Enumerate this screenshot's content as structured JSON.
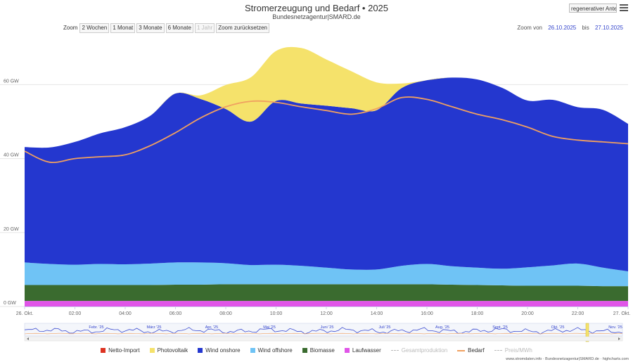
{
  "header": {
    "title": "Stromerzeugung und Bedarf  •  2025",
    "subtitle": "Bundesnetzagentur|SMARD.de",
    "menu_dropdown": "regenerativer Anteil...",
    "menu_icon": "hamburger-icon"
  },
  "zoom": {
    "label": "Zoom",
    "buttons": [
      "2 Wochen",
      "1 Monat",
      "3 Monate",
      "6 Monate",
      "1 Jahr",
      "Zoom zurücksetzen"
    ],
    "from_label": "Zoom von",
    "from_value": "26.10.2025",
    "to_label": "bis",
    "to_value": "27.10.2025"
  },
  "colors": {
    "netto_import": "#dd3322",
    "photovoltaik": "#f5e26b",
    "wind_onshore": "#2437cf",
    "wind_offshore": "#6fc3f5",
    "biomasse": "#3a6b2f",
    "laufwasser": "#e055e8",
    "bedarf": "#f0a060",
    "gesamtproduktion": "#bbbbbb"
  },
  "chart_data": {
    "type": "area",
    "stacked": true,
    "x_unit": "hour",
    "x": [
      0,
      1,
      2,
      3,
      4,
      5,
      6,
      7,
      8,
      9,
      10,
      11,
      12,
      13,
      14,
      15,
      16,
      17,
      18,
      19,
      20,
      21,
      22,
      23,
      24
    ],
    "x_tick_labels": [
      "26. Okt.",
      "02:00",
      "04:00",
      "06:00",
      "08:00",
      "10:00",
      "12:00",
      "14:00",
      "16:00",
      "18:00",
      "20:00",
      "22:00",
      "27. Okt."
    ],
    "y_ticks": [
      "0 GW",
      "20 GW",
      "40 GW",
      "60 GW"
    ],
    "ylim": [
      0,
      73
    ],
    "series": [
      {
        "name": "Laufwasser",
        "values": [
          1.5,
          1.5,
          1.5,
          1.5,
          1.5,
          1.5,
          1.5,
          1.5,
          1.5,
          1.5,
          1.5,
          1.5,
          1.5,
          1.5,
          1.5,
          1.5,
          1.5,
          1.5,
          1.5,
          1.5,
          1.5,
          1.5,
          1.5,
          1.5,
          1.5
        ]
      },
      {
        "name": "Biomasse",
        "values": [
          4.3,
          4.3,
          4.3,
          4.3,
          4.3,
          4.3,
          4.4,
          4.4,
          4.5,
          4.5,
          4.5,
          4.5,
          4.5,
          4.5,
          4.5,
          4.5,
          4.5,
          4.4,
          4.3,
          4.2,
          4.1,
          4.1,
          4.1,
          4.0,
          4.0
        ]
      },
      {
        "name": "Wind offshore",
        "values": [
          6.1,
          5.7,
          5.5,
          5.7,
          5.6,
          5.8,
          6.0,
          6.0,
          5.7,
          5.2,
          5.3,
          5.0,
          4.5,
          4.0,
          4.0,
          5.0,
          5.5,
          5.0,
          4.7,
          4.5,
          5.0,
          5.5,
          6.0,
          5.0,
          4.0
        ]
      },
      {
        "name": "Wind onshore",
        "values": [
          31.2,
          31.5,
          33.2,
          35.3,
          37.1,
          40.0,
          45.7,
          44.2,
          41.7,
          38.8,
          44.3,
          43.9,
          43.8,
          43.6,
          43.1,
          48.1,
          49.7,
          51.0,
          50.9,
          48.9,
          45.1,
          44.8,
          42.3,
          42.7,
          39.9
        ]
      },
      {
        "name": "Photovoltaik",
        "values": [
          0,
          0,
          0,
          0,
          0,
          0,
          0,
          1.0,
          6.5,
          12.0,
          13.5,
          15.0,
          12.5,
          10.0,
          7.5,
          1.2,
          0,
          0,
          0,
          0,
          0,
          0,
          0,
          0,
          0
        ]
      },
      {
        "name": "Netto-Import",
        "values": [
          0,
          0,
          0,
          0,
          0,
          0,
          0,
          0,
          0,
          0,
          0,
          0,
          0,
          0,
          0,
          0,
          0,
          0,
          0,
          0,
          0,
          0,
          0,
          0,
          0
        ]
      }
    ],
    "line_series": [
      {
        "name": "Bedarf",
        "values": [
          42.0,
          39.0,
          40.0,
          40.5,
          41.0,
          43.5,
          47.0,
          51.0,
          54.0,
          55.5,
          55.2,
          54.0,
          53.0,
          52.0,
          53.5,
          56.5,
          56.0,
          54.0,
          52.0,
          50.5,
          48.5,
          46.0,
          45.0,
          44.5,
          44.0
        ]
      }
    ],
    "navigator": {
      "months": [
        "Febr. '25",
        "März '25",
        "Apr. '25",
        "Mai '25",
        "Juni '25",
        "Juli '25",
        "Aug. '25",
        "Sept. '25",
        "Okt. '25",
        "Nov. '25"
      ]
    },
    "legend": [
      {
        "name": "Netto-Import",
        "kind": "square",
        "color_key": "netto_import",
        "dim": false
      },
      {
        "name": "Photovoltaik",
        "kind": "square",
        "color_key": "photovoltaik",
        "dim": false
      },
      {
        "name": "Wind onshore",
        "kind": "square",
        "color_key": "wind_onshore",
        "dim": false
      },
      {
        "name": "Wind offshore",
        "kind": "square",
        "color_key": "wind_offshore",
        "dim": false
      },
      {
        "name": "Biomasse",
        "kind": "square",
        "color_key": "biomasse",
        "dim": false
      },
      {
        "name": "Laufwasser",
        "kind": "square",
        "color_key": "laufwasser",
        "dim": false
      },
      {
        "name": "Gesamtproduktion",
        "kind": "dashed",
        "color_key": "gesamtproduktion",
        "dim": true
      },
      {
        "name": "Bedarf",
        "kind": "line",
        "color_key": "bedarf",
        "dim": false
      },
      {
        "name": "Preis/MWh",
        "kind": "dashed",
        "color_key": "gesamtproduktion",
        "dim": true
      }
    ]
  },
  "credit": "www.stromdaten.info · Bundesnetzagentur|SMARD.de · highcharts.com"
}
